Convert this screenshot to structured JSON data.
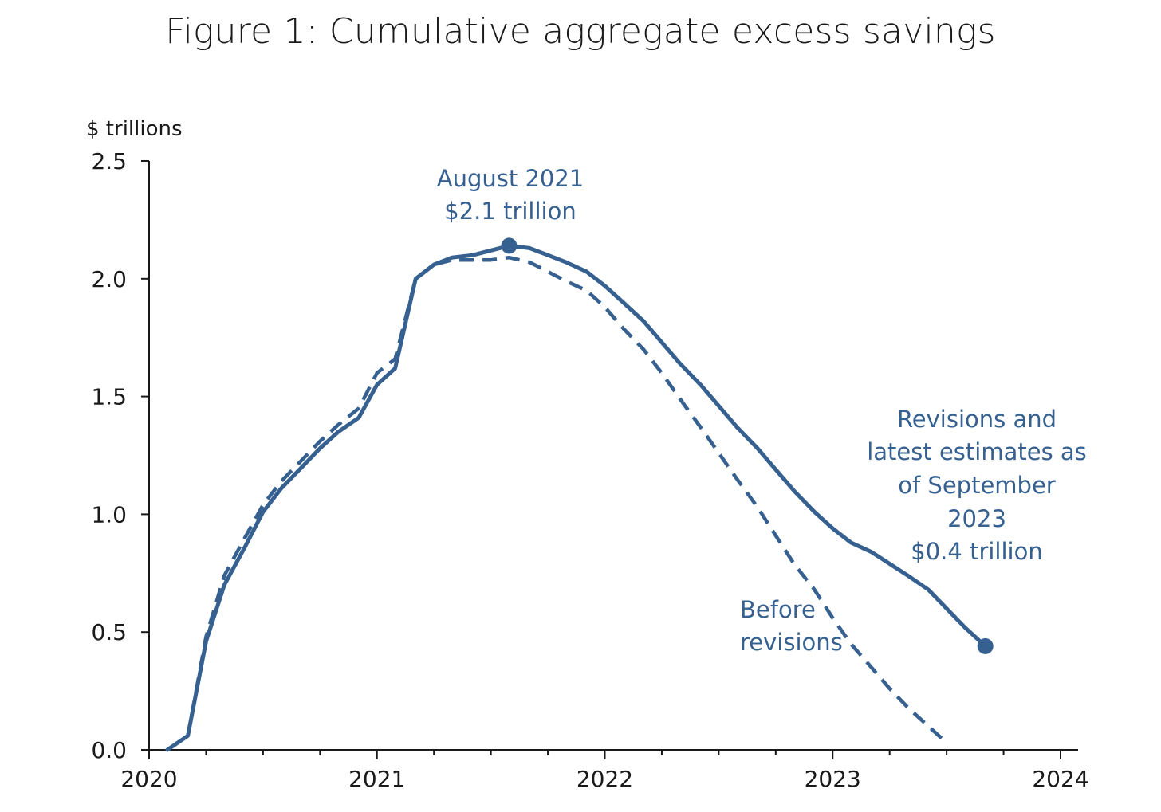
{
  "title": "Figure 1: Cumulative aggregate excess savings",
  "colors": {
    "series": "#35608f",
    "axis": "#1a1a1a",
    "text": "#1a1a1a"
  },
  "chart_data": {
    "type": "line",
    "title": "Figure 1: Cumulative aggregate excess savings",
    "ylabel": "$ trillions",
    "xlabel": "",
    "ylim": [
      0,
      2.5
    ],
    "xlim": [
      2020,
      2024
    ],
    "yticks": [
      "0.0",
      "0.5",
      "1.0",
      "1.5",
      "2.0",
      "2.5"
    ],
    "xticks": [
      "2020",
      "2021",
      "2022",
      "2023",
      "2024"
    ],
    "grid": false,
    "series": [
      {
        "style": "solid",
        "x": [
          2020.08,
          2020.17,
          2020.25,
          2020.33,
          2020.42,
          2020.5,
          2020.58,
          2020.67,
          2020.75,
          2020.83,
          2020.92,
          2021.0,
          2021.08,
          2021.17,
          2021.25,
          2021.33,
          2021.42,
          2021.5,
          2021.58,
          2021.67,
          2021.75,
          2021.83,
          2021.92,
          2022.0,
          2022.08,
          2022.17,
          2022.25,
          2022.33,
          2022.42,
          2022.5,
          2022.58,
          2022.67,
          2022.75,
          2022.83,
          2022.92,
          2023.0,
          2023.08,
          2023.17,
          2023.25,
          2023.33,
          2023.42,
          2023.5,
          2023.58,
          2023.67
        ],
        "values": [
          0.0,
          0.06,
          0.46,
          0.7,
          0.86,
          1.01,
          1.11,
          1.2,
          1.28,
          1.35,
          1.41,
          1.55,
          1.62,
          2.0,
          2.06,
          2.09,
          2.1,
          2.12,
          2.14,
          2.13,
          2.1,
          2.07,
          2.03,
          1.97,
          1.9,
          1.82,
          1.73,
          1.64,
          1.55,
          1.46,
          1.37,
          1.28,
          1.19,
          1.1,
          1.01,
          0.94,
          0.88,
          0.84,
          0.79,
          0.74,
          0.68,
          0.6,
          0.52,
          0.44
        ]
      },
      {
        "style": "dashed",
        "x": [
          2020.08,
          2020.17,
          2020.25,
          2020.33,
          2020.42,
          2020.5,
          2020.58,
          2020.67,
          2020.75,
          2020.83,
          2020.92,
          2021.0,
          2021.08,
          2021.17,
          2021.25,
          2021.33,
          2021.42,
          2021.5,
          2021.58,
          2021.67,
          2021.75,
          2021.83,
          2021.92,
          2022.0,
          2022.08,
          2022.17,
          2022.25,
          2022.33,
          2022.42,
          2022.5,
          2022.58,
          2022.67,
          2022.75,
          2022.83,
          2022.92,
          2023.0,
          2023.08,
          2023.17,
          2023.25,
          2023.33,
          2023.42,
          2023.5
        ],
        "values": [
          0.0,
          0.06,
          0.48,
          0.74,
          0.9,
          1.04,
          1.14,
          1.23,
          1.31,
          1.38,
          1.45,
          1.6,
          1.66,
          2.0,
          2.06,
          2.08,
          2.08,
          2.08,
          2.09,
          2.07,
          2.03,
          1.99,
          1.95,
          1.88,
          1.79,
          1.7,
          1.6,
          1.49,
          1.37,
          1.26,
          1.15,
          1.03,
          0.91,
          0.79,
          0.68,
          0.56,
          0.45,
          0.35,
          0.26,
          0.18,
          0.1,
          0.03
        ]
      }
    ],
    "markers": [
      {
        "x": 2021.58,
        "y": 2.14
      },
      {
        "x": 2023.67,
        "y": 0.44
      }
    ],
    "annotations": {
      "peak": [
        "August 2021",
        "$2.1 trillion"
      ],
      "latest": [
        "Revisions and",
        "latest estimates as",
        "of September",
        "2023",
        "$0.4 trillion"
      ],
      "before": [
        "Before",
        "revisions"
      ]
    }
  }
}
